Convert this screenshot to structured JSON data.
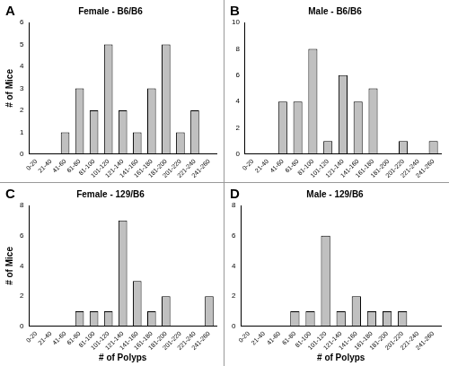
{
  "chart_data": [
    {
      "type": "bar",
      "title": "Female - B6/B6",
      "annotations": [
        "A"
      ],
      "y_label": "# of Mice",
      "categories": [
        "0-20",
        "21-40",
        "41-60",
        "61-80",
        "81-100",
        "101-120",
        "121-140",
        "141-160",
        "161-180",
        "181-200",
        "201-220",
        "221-240",
        "241-260"
      ],
      "values": [
        0,
        0,
        1,
        3,
        2,
        5,
        2,
        1,
        3,
        5,
        1,
        2,
        0
      ],
      "color": "#c0c0c0",
      "ylim": [
        0,
        6
      ],
      "yticks": [
        0,
        1,
        2,
        3,
        4,
        5,
        6
      ],
      "grid": false
    },
    {
      "type": "bar",
      "title": "Male - B6/B6",
      "annotations": [
        "B"
      ],
      "categories": [
        "0-20",
        "21-40",
        "41-60",
        "61-80",
        "81-100",
        "101-120",
        "121-140",
        "141-160",
        "161-180",
        "181-200",
        "201-220",
        "221-240",
        "241-260"
      ],
      "values": [
        0,
        0,
        4,
        4,
        8,
        1,
        6,
        4,
        5,
        0,
        1,
        0,
        1
      ],
      "color": "#c0c0c0",
      "ylim": [
        0,
        10
      ],
      "yticks": [
        0,
        2,
        4,
        6,
        8,
        10
      ],
      "grid": false
    },
    {
      "type": "bar",
      "title": "Female - 129/B6",
      "annotations": [
        "C"
      ],
      "x_label": "# of Polyps",
      "y_label": "# of Mice",
      "categories": [
        "0-20",
        "21-40",
        "41-60",
        "61-80",
        "81-100",
        "101-120",
        "121-140",
        "141-160",
        "161-180",
        "181-200",
        "201-220",
        "221-240",
        "241-260"
      ],
      "values": [
        0,
        0,
        0,
        1,
        1,
        1,
        7,
        3,
        1,
        2,
        0,
        0,
        2
      ],
      "color": "#c0c0c0",
      "ylim": [
        0,
        8
      ],
      "yticks": [
        0,
        2,
        4,
        6,
        8
      ],
      "grid": false
    },
    {
      "type": "bar",
      "title": "Male - 129/B6",
      "annotations": [
        "D"
      ],
      "x_label": "# of Polyps",
      "categories": [
        "0-20",
        "21-40",
        "41-60",
        "61-80",
        "81-100",
        "101-120",
        "121-140",
        "141-160",
        "161-180",
        "181-200",
        "201-220",
        "221-240",
        "241-260"
      ],
      "values": [
        0,
        0,
        0,
        1,
        1,
        6,
        1,
        2,
        1,
        1,
        1,
        0,
        0
      ],
      "color": "#c0c0c0",
      "ylim": [
        0,
        8
      ],
      "yticks": [
        0,
        2,
        4,
        6,
        8
      ],
      "grid": false
    }
  ]
}
